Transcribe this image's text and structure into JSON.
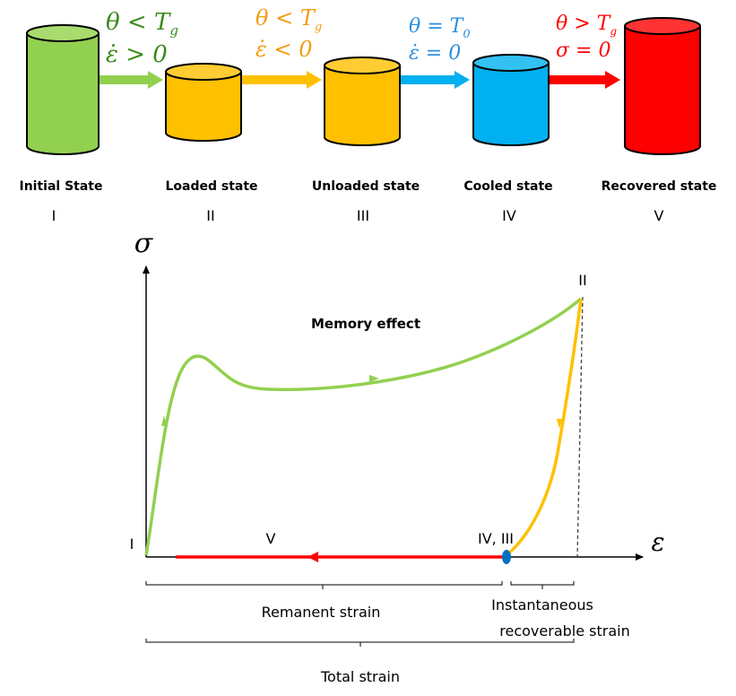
{
  "colors": {
    "green": "#92d050",
    "orange": "#ffc000",
    "blue": "#00b0f0",
    "red": "#ff0000",
    "curve_green": "#92d050",
    "curve_orange": "#ffc000",
    "curve_red": "#ff0000",
    "point_blue": "#0070c0"
  },
  "states": [
    {
      "label": "Initial State",
      "numeral": "I"
    },
    {
      "label": "Loaded state",
      "numeral": "II"
    },
    {
      "label": "Unloaded state",
      "numeral": "III"
    },
    {
      "label": "Cooled state",
      "numeral": "IV"
    },
    {
      "label": "Recovered state",
      "numeral": "V"
    }
  ],
  "transitions": [
    {
      "line1": "θ < T",
      "sub1": "g",
      "line2": "ε̇ > 0"
    },
    {
      "line1": "θ < T",
      "sub1": "g",
      "line2": "ε̇ < 0"
    },
    {
      "line1": "θ = T",
      "sub1": "0",
      "line2": "ε̇ = 0"
    },
    {
      "line1": "θ > T",
      "sub1": "g",
      "line2": "σ = 0"
    }
  ],
  "graph": {
    "y_axis_symbol": "σ",
    "x_axis_symbol": "ε",
    "title": "Memory effect",
    "point_I": "I",
    "point_II": "II",
    "point_IV_III": "IV, III",
    "point_V": "V",
    "brace_remanent": "Remanent strain",
    "brace_instant_line1": "Instantaneous",
    "brace_instant_line2": "recoverable strain",
    "brace_total": "Total strain"
  }
}
